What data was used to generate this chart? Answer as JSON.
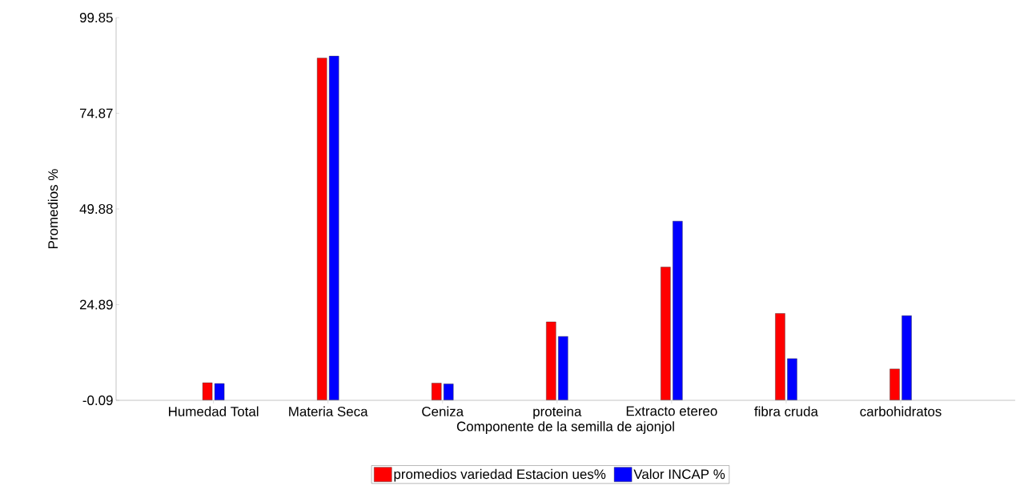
{
  "chart_data": {
    "type": "bar",
    "xlabel": "Componente de la semilla de ajonjol",
    "ylabel": "Promedios %",
    "categories": [
      "Humedad Total",
      "Materia Seca",
      "Ceniza",
      "proteina",
      "Extracto etereo",
      "fibra cruda",
      "carbohidratos"
    ],
    "series": [
      {
        "name": "promedios variedad Estacion ues%",
        "color": "#ff0000",
        "values": [
          4.5,
          89.3,
          4.4,
          20.4,
          34.7,
          22.6,
          8.1
        ]
      },
      {
        "name": "Valor INCAP %",
        "color": "#0000ff",
        "values": [
          4.3,
          89.8,
          4.2,
          16.6,
          46.7,
          10.8,
          22.0
        ]
      }
    ],
    "ylim": [
      -0.09,
      99.85
    ],
    "yticks": [
      -0.09,
      24.89,
      49.88,
      74.87,
      99.85
    ],
    "grid": false,
    "legend": "bottom"
  }
}
